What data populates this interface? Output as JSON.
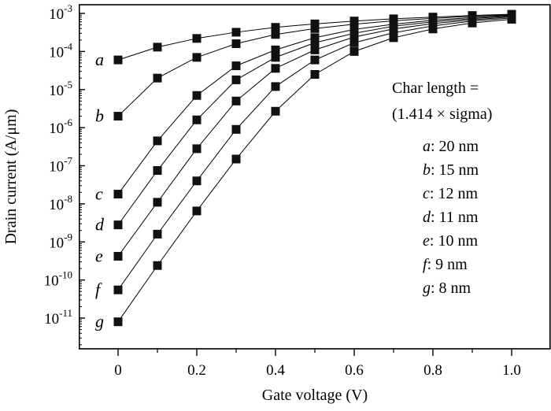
{
  "chart_data": {
    "type": "scatter",
    "xlabel": "Gate voltage (V)",
    "ylabel": "Drain current (A/μm)",
    "xlim": [
      -0.1,
      1.1
    ],
    "ylim_log10": [
      -11.6,
      -2.95
    ],
    "y_scale": "log",
    "x_ticks": [
      0,
      0.2,
      0.4,
      0.6,
      0.8,
      1.0
    ],
    "x_tick_labels": [
      "0",
      "0.2",
      "0.4",
      "0.6",
      "0.8",
      "1.0"
    ],
    "y_ticks_exp": [
      -11,
      -10,
      -9,
      -8,
      -7,
      -6,
      -5,
      -4,
      -3
    ],
    "y_tick_base": "10",
    "y_tick_exponents": [
      "-11",
      "-10",
      "-9",
      "-8",
      "-7",
      "-6",
      "-5",
      "-4",
      "-3"
    ],
    "x": [
      0,
      0.1,
      0.2,
      0.3,
      0.4,
      0.5,
      0.6,
      0.7,
      0.8,
      0.9,
      1.0
    ],
    "series": [
      {
        "label": "a",
        "values": [
          6e-05,
          0.00013,
          0.00022,
          0.00032,
          0.00043,
          0.00053,
          0.00063,
          0.00072,
          0.0008,
          0.00088,
          0.00095
        ]
      },
      {
        "label": "b",
        "values": [
          2e-06,
          2e-05,
          7e-05,
          0.00016,
          0.00028,
          0.0004,
          0.00052,
          0.00064,
          0.00074,
          0.00084,
          0.00092
        ]
      },
      {
        "label": "c",
        "values": [
          1.8e-08,
          4.5e-07,
          7e-06,
          4.2e-05,
          0.00011,
          0.00023,
          0.00038,
          0.00052,
          0.00066,
          0.00078,
          0.00089
        ]
      },
      {
        "label": "d",
        "values": [
          2.8e-09,
          7.5e-08,
          1.6e-06,
          1.8e-05,
          7e-05,
          0.00017,
          0.0003,
          0.00046,
          0.0006,
          0.00073,
          0.00085
        ]
      },
      {
        "label": "e",
        "values": [
          4.2e-10,
          1.1e-08,
          2.8e-07,
          5e-06,
          3.6e-05,
          0.00011,
          0.00024,
          0.00039,
          0.00054,
          0.00068,
          0.00081
        ]
      },
      {
        "label": "f",
        "values": [
          5.5e-11,
          1.6e-09,
          4e-08,
          9e-07,
          1.2e-05,
          6e-05,
          0.00017,
          0.00031,
          0.00047,
          0.00063,
          0.00076
        ]
      },
      {
        "label": "g",
        "values": [
          8e-12,
          2.4e-10,
          6.5e-09,
          1.5e-07,
          2.7e-06,
          2.5e-05,
          0.0001,
          0.00023,
          0.00039,
          0.00056,
          0.0007
        ]
      }
    ],
    "legend": {
      "title_line1": "Char length =",
      "title_line2": "(1.414 × sigma)",
      "entries": [
        {
          "letter": "a",
          "text": ": 20 nm"
        },
        {
          "letter": "b",
          "text": ": 15 nm"
        },
        {
          "letter": "c",
          "text": ": 12 nm"
        },
        {
          "letter": "d",
          "text": ": 11 nm"
        },
        {
          "letter": "e",
          "text": ": 10 nm"
        },
        {
          "letter": "f",
          "text": ": 9 nm"
        },
        {
          "letter": "g",
          "text": ": 8 nm"
        }
      ],
      "position": "right"
    },
    "grid": false,
    "marker": "square"
  }
}
